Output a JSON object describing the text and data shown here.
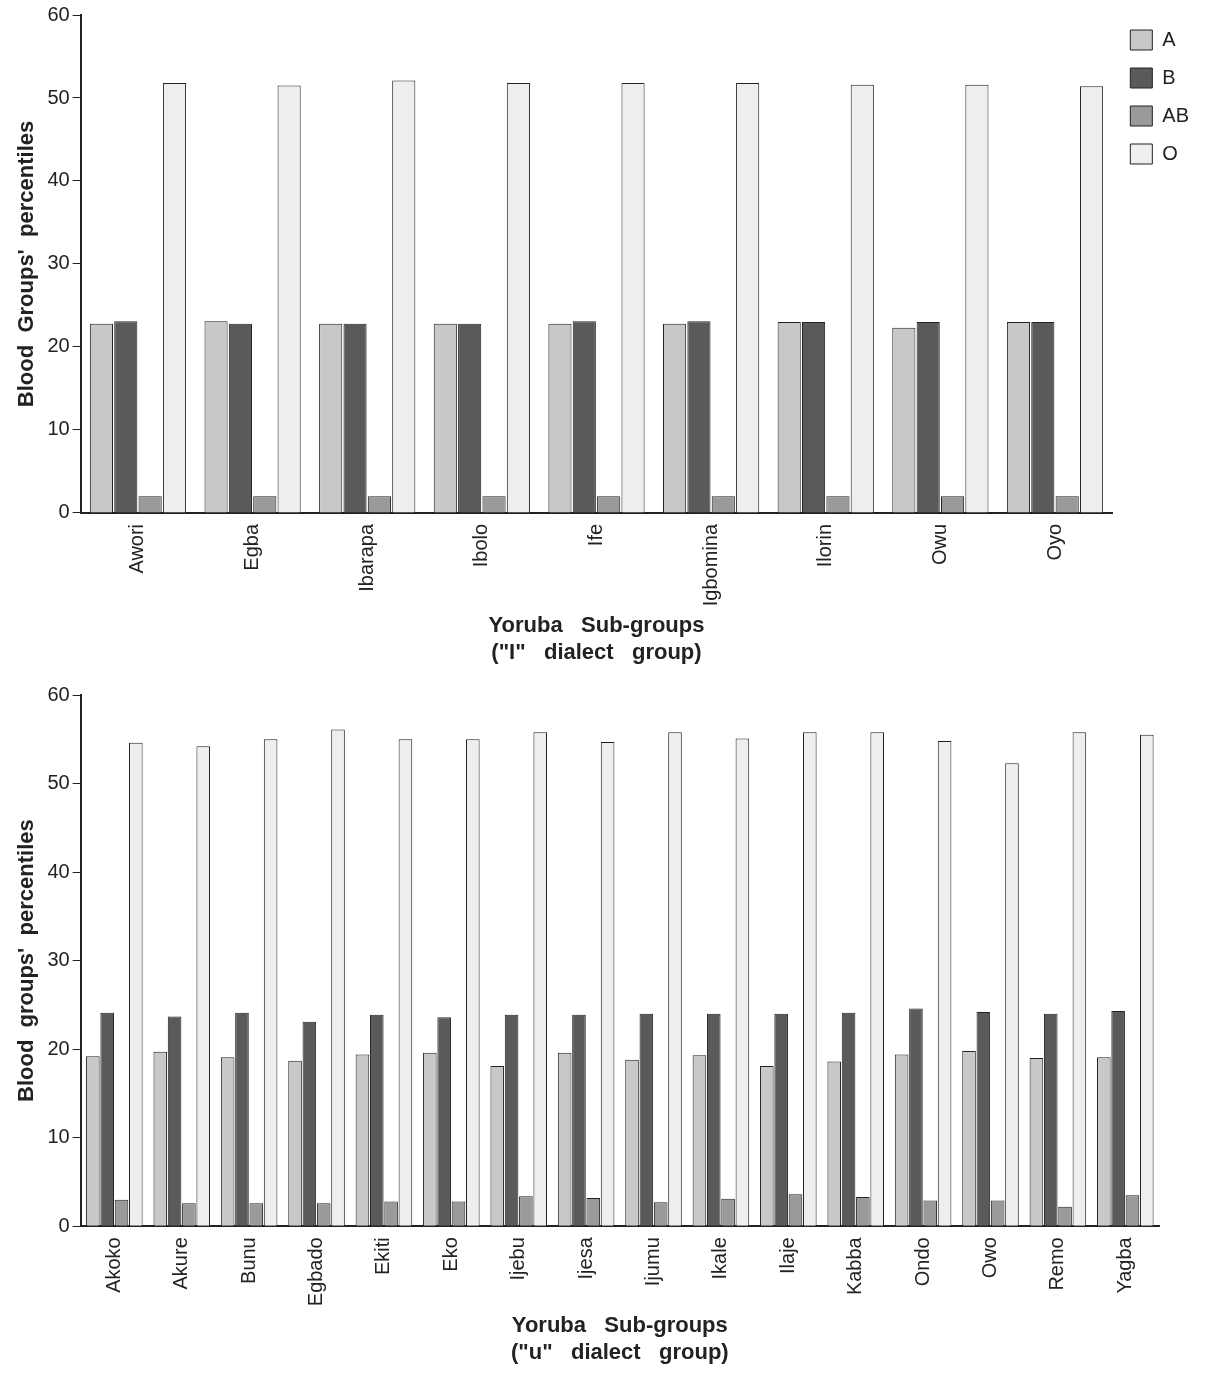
{
  "chart_data": [
    {
      "type": "bar",
      "xlabel": "Yoruba   Sub-groups\n(\"I\"   dialect   group)",
      "ylabel": "Blood  Groups'  percentiles",
      "categories": [
        "Awori",
        "Egba",
        "Ibarapa",
        "Ibolo",
        "Ife",
        "Igbomina",
        "Ilorin",
        "Owu",
        "Oyo"
      ],
      "series": [
        {
          "name": "A",
          "color": "#c8c8c8",
          "values": [
            22.8,
            23.1,
            22.8,
            22.8,
            22.8,
            22.8,
            23.0,
            22.3,
            23.0
          ]
        },
        {
          "name": "B",
          "color": "#5a5a5a",
          "values": [
            23.1,
            22.8,
            22.8,
            22.8,
            23.1,
            23.1,
            23.0,
            23.0,
            23.0
          ]
        },
        {
          "name": "AB",
          "color": "#9a9a9a",
          "values": [
            2,
            2,
            2,
            2,
            2,
            2,
            2,
            2,
            2
          ]
        },
        {
          "name": "O",
          "color": "#eeeeee",
          "values": [
            51.8,
            51.5,
            52.1,
            51.8,
            51.8,
            51.8,
            51.6,
            51.6,
            51.4
          ]
        }
      ],
      "ylim": [
        0,
        60
      ],
      "yticks": [
        0,
        10,
        20,
        30,
        40,
        50,
        60
      ],
      "grid": false,
      "legend": "right"
    },
    {
      "type": "bar",
      "xlabel": "Yoruba   Sub-groups\n(\"u\"   dialect   group)",
      "ylabel": "Blood  groups'  percentiles",
      "categories": [
        "Akoko",
        "Akure",
        "Bunu",
        "Egbado",
        "Ekiti",
        "Eko",
        "Ijebu",
        "Ijesa",
        "Ijumu",
        "Ikale",
        "Ilaje",
        "Kabba",
        "Ondo",
        "Owo",
        "Remo",
        "Yagba"
      ],
      "series": [
        {
          "color": "#c8c8c8",
          "values": [
            19.2,
            19.7,
            19.1,
            18.7,
            19.4,
            19.6,
            18.1,
            19.6,
            18.8,
            19.3,
            18.1,
            18.6,
            19.4,
            19.8,
            19.0,
            19.1
          ]
        },
        {
          "color": "#5a5a5a",
          "values": [
            24.1,
            23.7,
            24.1,
            23.1,
            23.9,
            23.6,
            23.9,
            23.9,
            24.0,
            24.0,
            24.0,
            24.1,
            24.6,
            24.2,
            24.0,
            24.3
          ]
        },
        {
          "color": "#9a9a9a",
          "values": [
            3.0,
            2.6,
            2.6,
            2.6,
            2.8,
            2.8,
            3.4,
            3.2,
            2.7,
            3.1,
            3.6,
            3.3,
            2.9,
            2.9,
            2.2,
            3.5
          ]
        },
        {
          "color": "#eeeeee",
          "values": [
            54.6,
            54.2,
            55.0,
            56.1,
            55.0,
            55.0,
            55.8,
            54.7,
            55.8,
            55.1,
            55.8,
            55.8,
            54.8,
            52.3,
            55.8,
            55.5
          ]
        }
      ],
      "ylim": [
        0,
        60
      ],
      "yticks": [
        0,
        10,
        20,
        30,
        40,
        50,
        60
      ],
      "grid": false,
      "legend": false
    }
  ]
}
